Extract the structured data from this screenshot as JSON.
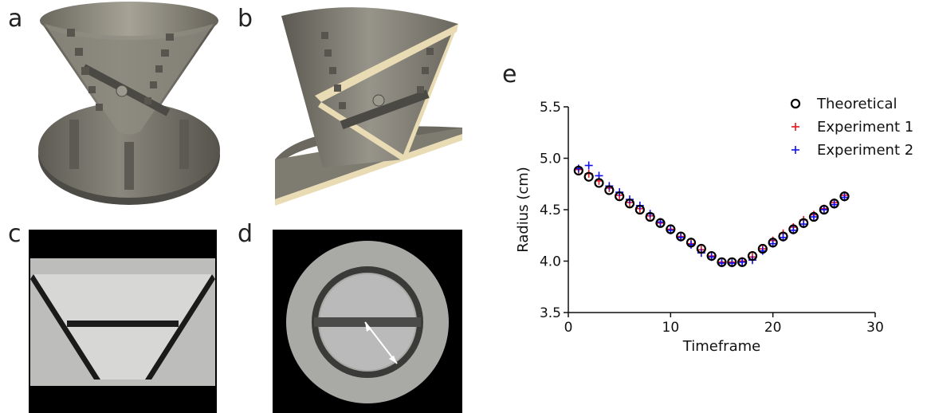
{
  "panels": {
    "a": "a",
    "b": "b",
    "c": "c",
    "d": "d",
    "e": "e"
  },
  "colors": {
    "theoretical": "#000000",
    "experiment1": "#e8141c",
    "experiment2": "#1010ee",
    "model_body": "#7d7a70",
    "model_dark": "#4b4a44",
    "model_cut": "#e9dcb4"
  },
  "chart_data": {
    "type": "scatter",
    "xlabel": "Timeframe",
    "ylabel": "Radius (cm)",
    "xlim": [
      0,
      30
    ],
    "ylim": [
      3.5,
      5.5
    ],
    "xticks": [
      "0",
      "10",
      "20",
      "30"
    ],
    "yticks": [
      "3.5",
      "4.0",
      "4.5",
      "5.0",
      "5.5"
    ],
    "legend_position": "top-right",
    "series": [
      {
        "name": "Theoretical",
        "marker": "open-circle",
        "x": [
          1,
          2,
          3,
          4,
          5,
          6,
          7,
          8,
          9,
          10,
          11,
          12,
          13,
          14,
          15,
          16,
          17,
          18,
          19,
          20,
          21,
          22,
          23,
          24,
          25,
          26,
          27
        ],
        "y": [
          4.88,
          4.82,
          4.76,
          4.69,
          4.63,
          4.56,
          4.5,
          4.43,
          4.37,
          4.31,
          4.24,
          4.18,
          4.12,
          4.05,
          3.99,
          3.99,
          3.99,
          4.05,
          4.12,
          4.18,
          4.24,
          4.31,
          4.37,
          4.43,
          4.5,
          4.56,
          4.63
        ]
      },
      {
        "name": "Experiment 1",
        "marker": "plus",
        "x": [
          1,
          2,
          3,
          4,
          5,
          6,
          7,
          8,
          9,
          10,
          11,
          12,
          13,
          14,
          15,
          16,
          17,
          18,
          19,
          20,
          21,
          22,
          23,
          24,
          25,
          26,
          27
        ],
        "y": [
          4.89,
          4.85,
          4.78,
          4.71,
          4.64,
          4.57,
          4.51,
          4.44,
          4.37,
          4.31,
          4.24,
          4.17,
          4.11,
          4.05,
          3.99,
          3.99,
          4.0,
          4.04,
          4.12,
          4.2,
          4.27,
          4.33,
          4.4,
          4.45,
          4.51,
          4.57,
          4.64
        ]
      },
      {
        "name": "Experiment 2",
        "marker": "plus",
        "x": [
          1,
          2,
          3,
          4,
          5,
          6,
          7,
          8,
          9,
          10,
          11,
          12,
          13,
          14,
          15,
          16,
          17,
          18,
          19,
          20,
          21,
          22,
          23,
          24,
          25,
          26,
          27
        ],
        "y": [
          4.9,
          4.93,
          4.83,
          4.73,
          4.67,
          4.6,
          4.54,
          4.46,
          4.38,
          4.3,
          4.23,
          4.16,
          4.08,
          4.04,
          3.98,
          3.98,
          3.99,
          4.01,
          4.1,
          4.17,
          4.23,
          4.3,
          4.36,
          4.43,
          4.5,
          4.55,
          4.62
        ]
      }
    ]
  }
}
